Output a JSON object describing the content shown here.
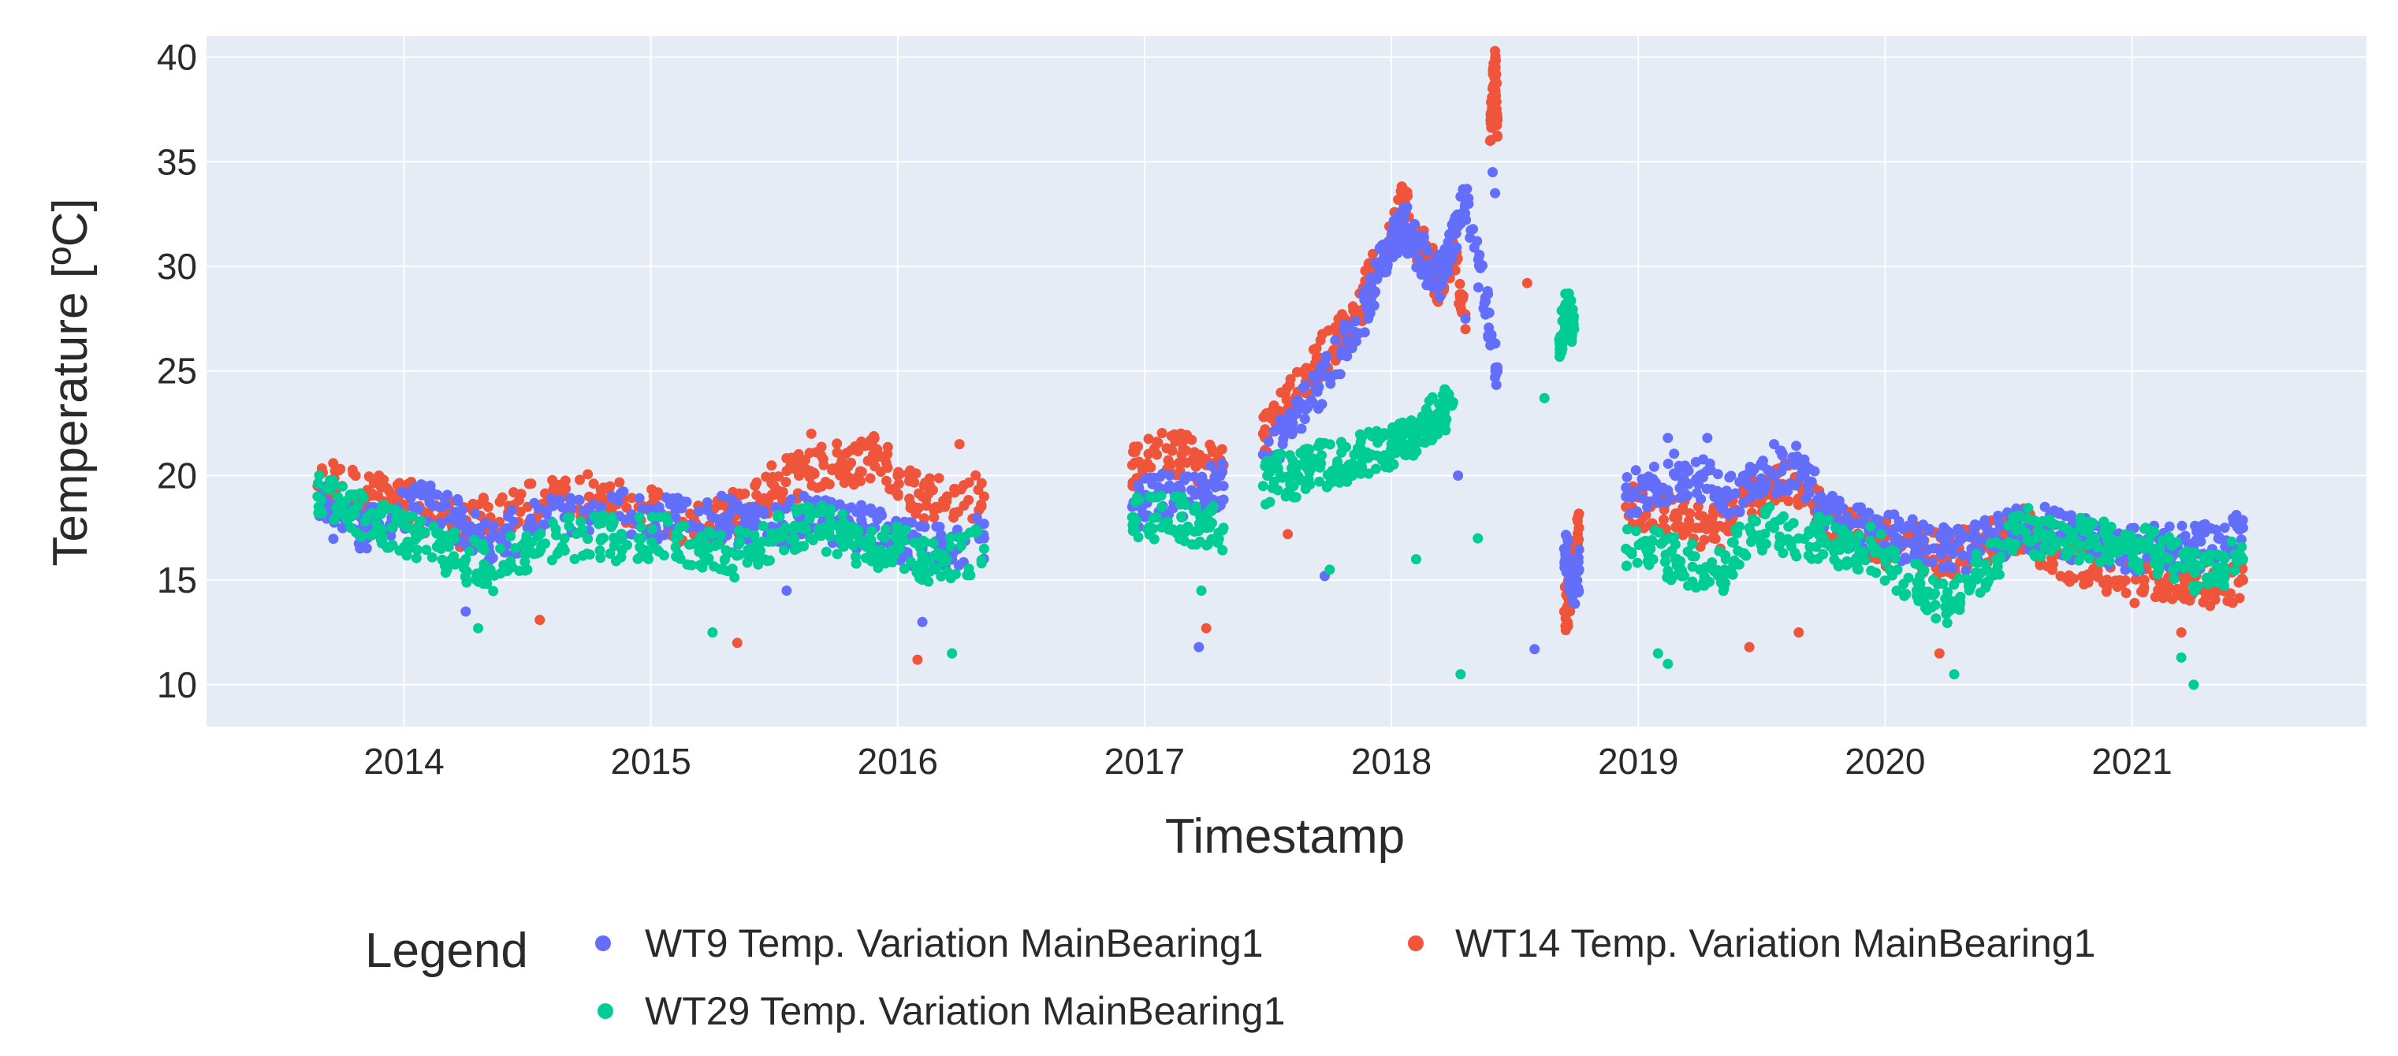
{
  "chart_data": {
    "type": "scatter",
    "title": "",
    "xlabel": "Timestamp",
    "ylabel": "Temperature [ºC]",
    "xlim": [
      2013.2,
      2021.95
    ],
    "ylim": [
      8,
      41
    ],
    "x_ticks": [
      2014,
      2015,
      2016,
      2017,
      2018,
      2019,
      2020,
      2021
    ],
    "x_tick_labels": [
      "2014",
      "2015",
      "2016",
      "2017",
      "2018",
      "2019",
      "2020",
      "2021"
    ],
    "y_ticks": [
      10,
      15,
      20,
      25,
      30,
      35,
      40
    ],
    "y_tick_labels": [
      "10",
      "15",
      "20",
      "25",
      "30",
      "35",
      "40"
    ],
    "grid": true,
    "background": "#e5ecf6",
    "legend": {
      "title": "Legend",
      "position": "bottom"
    },
    "series": [
      {
        "name": "WT9 Temp. Variation MainBearing1",
        "color": "#636efa",
        "segments": [
          {
            "x": [
              2013.65,
              2013.75,
              2013.85,
              2013.95,
              2014.05,
              2014.15,
              2014.25,
              2014.35,
              2014.5,
              2014.65,
              2014.8,
              2014.95,
              2015.1,
              2015.2,
              2015.3,
              2015.4,
              2015.5,
              2015.6,
              2015.7,
              2015.8,
              2015.9,
              2016.0,
              2016.1,
              2016.2,
              2016.35
            ],
            "y": [
              19.0,
              17.5,
              17.5,
              18.0,
              18.5,
              18.5,
              17.5,
              17.0,
              17.5,
              18.0,
              18.5,
              18.0,
              18.0,
              17.5,
              18.0,
              17.5,
              17.5,
              18.0,
              18.0,
              17.5,
              17.5,
              17.0,
              16.5,
              16.5,
              17.0
            ]
          },
          {
            "x": [
              2016.95,
              2017.05,
              2017.15,
              2017.25,
              2017.32
            ],
            "y": [
              18.5,
              19.0,
              19.0,
              19.5,
              19.5
            ]
          },
          {
            "x": [
              2017.48,
              2017.6,
              2017.7,
              2017.8,
              2017.9,
              2017.95,
              2018.0,
              2018.05,
              2018.1,
              2018.15,
              2018.2,
              2018.25,
              2018.3,
              2018.38,
              2018.43
            ],
            "y": [
              21.0,
              22.5,
              24.0,
              26.0,
              28.0,
              30.0,
              31.0,
              32.0,
              31.0,
              30.0,
              29.5,
              31.5,
              33.0,
              28.5,
              25.0
            ]
          },
          {
            "x": [
              2018.7,
              2018.72,
              2018.74,
              2018.76
            ],
            "y": [
              16.5,
              15.5,
              14.5,
              15.5
            ]
          },
          {
            "x": [
              2018.95,
              2019.05,
              2019.15,
              2019.25,
              2019.35,
              2019.45,
              2019.55,
              2019.65,
              2019.75,
              2019.85,
              2019.95,
              2020.05,
              2020.15,
              2020.25,
              2020.35,
              2020.45,
              2020.55,
              2020.65,
              2020.75,
              2020.85,
              2020.95,
              2021.05,
              2021.15,
              2021.25,
              2021.35,
              2021.45
            ],
            "y": [
              19.0,
              19.5,
              20.0,
              20.0,
              19.0,
              19.5,
              20.0,
              20.5,
              18.5,
              17.5,
              17.5,
              17.0,
              17.0,
              16.5,
              16.5,
              17.0,
              17.5,
              17.5,
              17.0,
              17.0,
              16.5,
              16.5,
              16.5,
              16.5,
              17.0,
              17.5
            ]
          }
        ],
        "outliers": {
          "x": [
            2017.22,
            2017.73,
            2018.27,
            2018.3,
            2018.41,
            2018.42,
            2018.58,
            2019.12,
            2019.28,
            2019.55,
            2016.1,
            2015.55,
            2014.25
          ],
          "y": [
            11.8,
            15.2,
            20.0,
            27.5,
            34.5,
            33.5,
            11.7,
            21.8,
            21.8,
            21.5,
            13.0,
            14.5,
            13.5
          ]
        }
      },
      {
        "name": "WT14 Temp. Variation MainBearing1",
        "color": "#ef553b",
        "segments": [
          {
            "x": [
              2013.65,
              2013.75,
              2013.85,
              2013.95,
              2014.05,
              2014.15,
              2014.25,
              2014.35,
              2014.5,
              2014.65,
              2014.8,
              2014.95,
              2015.1,
              2015.2,
              2015.3,
              2015.4,
              2015.5,
              2015.6,
              2015.7,
              2015.8,
              2015.9,
              2016.0,
              2016.1,
              2016.2,
              2016.35
            ],
            "y": [
              19.5,
              19.5,
              19.0,
              19.0,
              18.5,
              18.0,
              17.5,
              18.0,
              18.5,
              19.0,
              19.0,
              18.5,
              18.0,
              17.5,
              18.0,
              18.5,
              19.5,
              20.0,
              20.5,
              20.5,
              21.0,
              20.0,
              19.0,
              19.0,
              19.0
            ]
          },
          {
            "x": [
              2016.95,
              2017.05,
              2017.15,
              2017.25,
              2017.32
            ],
            "y": [
              20.5,
              21.0,
              21.0,
              20.5,
              20.5
            ]
          },
          {
            "x": [
              2017.48,
              2017.55,
              2017.62,
              2017.7,
              2017.78,
              2017.85,
              2017.92,
              2018.0,
              2018.05,
              2018.1,
              2018.15,
              2018.2,
              2018.25,
              2018.3
            ],
            "y": [
              22.0,
              23.0,
              24.0,
              25.5,
              26.5,
              27.5,
              29.5,
              31.5,
              33.0,
              31.0,
              30.5,
              29.0,
              31.0,
              27.0
            ]
          },
          {
            "x": [
              2018.4,
              2018.41,
              2018.42,
              2018.43
            ],
            "y": [
              36.0,
              38.5,
              39.5,
              37.0
            ]
          },
          {
            "x": [
              2018.7,
              2018.72,
              2018.74,
              2018.76
            ],
            "y": [
              13.5,
              14.0,
              16.0,
              17.5
            ]
          },
          {
            "x": [
              2018.95,
              2019.05,
              2019.15,
              2019.25,
              2019.35,
              2019.45,
              2019.55,
              2019.65,
              2019.75,
              2019.85,
              2019.95,
              2020.05,
              2020.15,
              2020.25,
              2020.35,
              2020.45,
              2020.55,
              2020.65,
              2020.75,
              2020.85,
              2020.95,
              2021.05,
              2021.15,
              2021.25,
              2021.35,
              2021.45
            ],
            "y": [
              18.5,
              18.5,
              18.0,
              17.5,
              17.5,
              19.0,
              19.5,
              19.5,
              18.0,
              17.5,
              17.0,
              16.5,
              16.5,
              16.0,
              16.5,
              17.0,
              17.5,
              16.5,
              16.0,
              15.5,
              15.0,
              15.0,
              15.0,
              15.0,
              14.5,
              15.0
            ]
          }
        ],
        "outliers": {
          "x": [
            2016.08,
            2017.25,
            2017.58,
            2018.55,
            2019.45,
            2019.65,
            2020.22,
            2021.2,
            2015.35,
            2014.55,
            2015.65,
            2016.25
          ],
          "y": [
            11.2,
            12.7,
            17.2,
            29.2,
            11.8,
            12.5,
            11.5,
            12.5,
            12.0,
            13.1,
            22.0,
            21.5
          ]
        }
      },
      {
        "name": "WT29 Temp. Variation MainBearing1",
        "color": "#00cc96",
        "segments": [
          {
            "x": [
              2013.65,
              2013.75,
              2013.85,
              2013.95,
              2014.05,
              2014.15,
              2014.25,
              2014.35,
              2014.5,
              2014.65,
              2014.8,
              2014.95,
              2015.1,
              2015.2,
              2015.3,
              2015.4,
              2015.5,
              2015.6,
              2015.7,
              2015.8,
              2015.9,
              2016.0,
              2016.1,
              2016.2,
              2016.35
            ],
            "y": [
              19.0,
              18.5,
              18.0,
              17.5,
              17.0,
              16.5,
              16.0,
              15.5,
              16.5,
              17.0,
              17.0,
              17.0,
              17.0,
              16.5,
              16.0,
              16.5,
              17.0,
              17.5,
              17.5,
              17.0,
              16.5,
              16.5,
              16.0,
              16.0,
              16.5
            ]
          },
          {
            "x": [
              2016.95,
              2017.05,
              2017.15,
              2017.25,
              2017.32
            ],
            "y": [
              18.0,
              18.0,
              18.0,
              17.5,
              17.5
            ]
          },
          {
            "x": [
              2017.48,
              2017.55,
              2017.62,
              2017.7,
              2017.78,
              2017.85,
              2017.92,
              2018.0,
              2018.05,
              2018.1,
              2018.15,
              2018.2,
              2018.25
            ],
            "y": [
              19.5,
              20.0,
              20.0,
              20.5,
              20.5,
              21.0,
              21.0,
              21.5,
              21.5,
              22.0,
              22.5,
              23.0,
              23.5
            ]
          },
          {
            "x": [
              2018.68,
              2018.7,
              2018.72,
              2018.74
            ],
            "y": [
              26.5,
              27.5,
              28.0,
              27.0
            ]
          },
          {
            "x": [
              2018.95,
              2019.05,
              2019.15,
              2019.25,
              2019.35,
              2019.45,
              2019.55,
              2019.65,
              2019.75,
              2019.85,
              2019.95,
              2020.05,
              2020.15,
              2020.25,
              2020.35,
              2020.45,
              2020.55,
              2020.65,
              2020.75,
              2020.85,
              2020.95,
              2021.05,
              2021.15,
              2021.25,
              2021.35,
              2021.45
            ],
            "y": [
              16.5,
              16.5,
              16.0,
              15.5,
              15.5,
              17.5,
              17.5,
              17.0,
              17.0,
              16.5,
              16.5,
              15.5,
              14.5,
              14.0,
              15.0,
              16.0,
              17.5,
              17.0,
              17.0,
              17.0,
              16.5,
              16.5,
              16.0,
              15.5,
              15.5,
              16.0
            ]
          }
        ],
        "outliers": {
          "x": [
            2016.22,
            2017.23,
            2017.75,
            2018.1,
            2018.28,
            2018.35,
            2018.62,
            2019.08,
            2019.12,
            2020.28,
            2021.25,
            2021.2,
            2015.25,
            2014.3
          ],
          "y": [
            11.5,
            14.5,
            15.5,
            16.0,
            10.5,
            17.0,
            23.7,
            11.5,
            11.0,
            10.5,
            10.0,
            11.3,
            12.5,
            12.7
          ]
        }
      }
    ]
  }
}
